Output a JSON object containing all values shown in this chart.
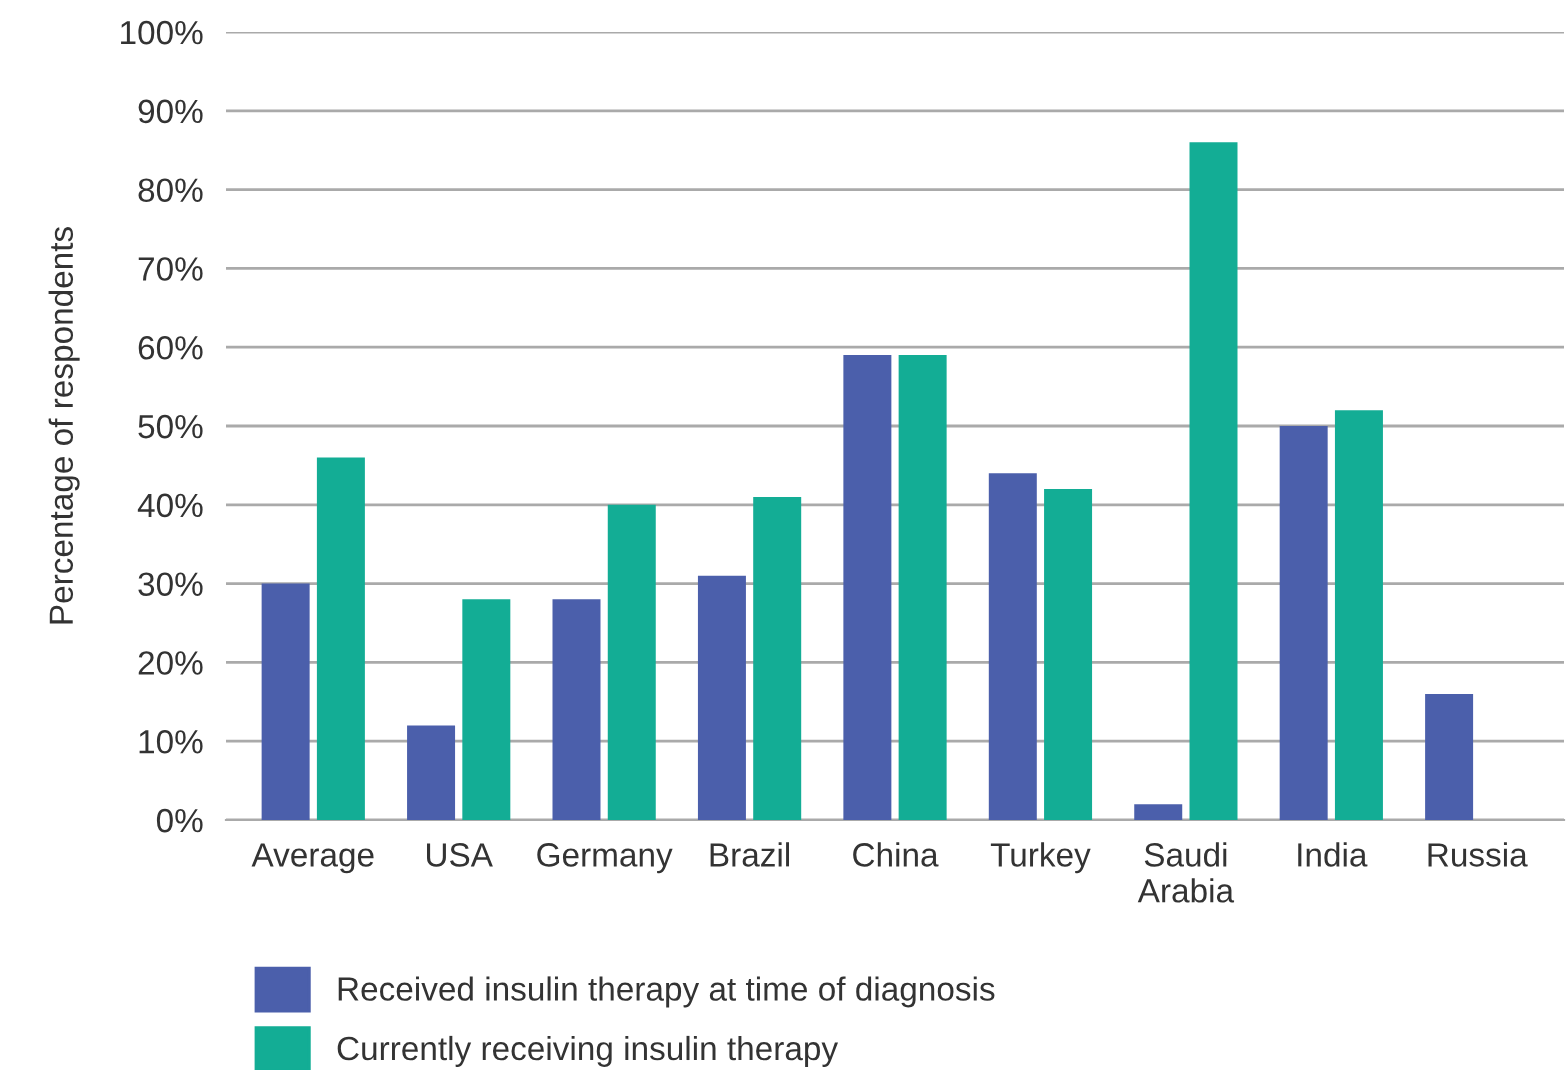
{
  "chart_data": {
    "type": "bar",
    "categories": [
      "Average",
      "USA",
      "Germany",
      "Brazil",
      "China",
      "Turkey",
      "Saudi\nArabia",
      "India",
      "Russia"
    ],
    "ylabel": "Percentage of respondents",
    "series": [
      {
        "name": "Received insulin therapy at time of diagnosis",
        "color": "#4b5fab",
        "values": [
          30,
          12,
          28,
          31,
          59,
          44,
          2,
          50,
          16
        ]
      },
      {
        "name": "Currently receiving insulin therapy",
        "color": "#13ad95",
        "values": [
          46,
          28,
          40,
          41,
          59,
          42,
          86,
          52,
          null
        ]
      }
    ],
    "ylim": [
      0,
      100
    ],
    "yticks": [
      {
        "value": 0,
        "label": "0%"
      },
      {
        "value": 10,
        "label": "10%"
      },
      {
        "value": 20,
        "label": "20%"
      },
      {
        "value": 30,
        "label": "30%"
      },
      {
        "value": 40,
        "label": "40%"
      },
      {
        "value": 50,
        "label": "50%"
      },
      {
        "value": 60,
        "label": "60%"
      },
      {
        "value": 70,
        "label": "70%"
      },
      {
        "value": 80,
        "label": "80%"
      },
      {
        "value": 90,
        "label": "90%"
      },
      {
        "value": 100,
        "label": "100%"
      }
    ],
    "grid": "y",
    "legend": "bottom left"
  }
}
